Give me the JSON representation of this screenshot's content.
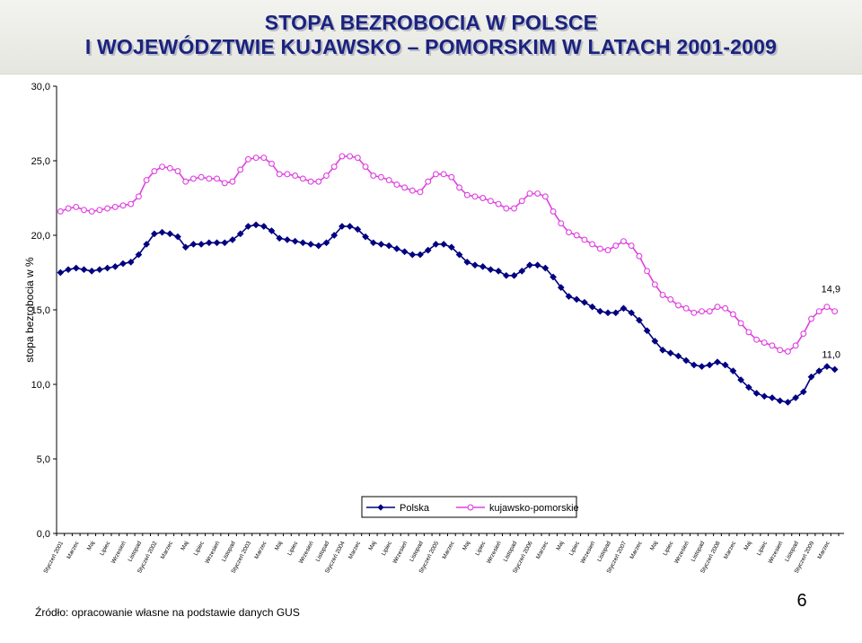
{
  "title": {
    "line1": "STOPA BEZROBOCIA W POLSCE",
    "line2": "I WOJEWÓDZTWIE KUJAWSKO – POMORSKIM W LATACH 2001-2009"
  },
  "source": "Źródło: opracowanie własne na podstawie danych GUS",
  "page_number": "6",
  "colors": {
    "polska": "#000080",
    "kujawsko": "#e040e0",
    "title": "#1a237e"
  },
  "chart_data": {
    "type": "line",
    "title": "STOPA BEZROBOCIA W POLSCE I WOJEWÓDZTWIE KUJAWSKO – POMORSKIM W LATACH 2001-2009",
    "xlabel": "",
    "ylabel": "stopa bezrobocia w %",
    "ylim": [
      0,
      30
    ],
    "yticks": [
      "0,0",
      "5,0",
      "10,0",
      "15,0",
      "20,0",
      "25,0",
      "30,0"
    ],
    "yticks_values": [
      0,
      5,
      10,
      15,
      20,
      25,
      30
    ],
    "grid": false,
    "legend_position": "bottom-right",
    "x_tick_labels": [
      "Styczeń 2001",
      "Marzec",
      "Maj",
      "Lipiec",
      "Wrzesień",
      "Listopad",
      "Styczeń 2002",
      "Marzec",
      "Maj",
      "Lipiec",
      "Wrzesień",
      "Listopad",
      "Styczeń 2003",
      "Marzec",
      "Maj",
      "Lipiec",
      "Wrzesień",
      "Listopad",
      "Styczeń 2004",
      "Marzec",
      "Maj",
      "Lipiec",
      "Wrzesień",
      "Listopad",
      "Styczeń 2005",
      "Marzec",
      "Maj",
      "Lipiec",
      "Wrzesień",
      "Listopad",
      "Styczeń 2006",
      "Marzec",
      "Maj",
      "Lipiec",
      "Wrzesień",
      "Listopad",
      "Styczeń 2007",
      "Marzec",
      "Maj",
      "Lipiec",
      "Wrzesień",
      "Listopad",
      "Styczeń 2008",
      "Marzec",
      "Maj",
      "Lipiec",
      "Wrzesień",
      "Listopad",
      "Styczeń 2009",
      "Marzec"
    ],
    "annotations": [
      {
        "text": "14,9",
        "series": 1
      },
      {
        "text": "11,0",
        "series": 0
      }
    ],
    "series": [
      {
        "name": "Polska",
        "marker": "diamond",
        "values": [
          17.5,
          17.7,
          17.8,
          17.7,
          17.6,
          17.7,
          17.8,
          17.9,
          18.1,
          18.2,
          18.7,
          19.4,
          20.1,
          20.2,
          20.1,
          19.9,
          19.2,
          19.4,
          19.4,
          19.5,
          19.5,
          19.5,
          19.7,
          20.1,
          20.6,
          20.7,
          20.6,
          20.3,
          19.8,
          19.7,
          19.6,
          19.5,
          19.4,
          19.3,
          19.5,
          20.0,
          20.6,
          20.6,
          20.4,
          19.9,
          19.5,
          19.4,
          19.3,
          19.1,
          18.9,
          18.7,
          18.7,
          19.0,
          19.4,
          19.4,
          19.2,
          18.7,
          18.2,
          18.0,
          17.9,
          17.7,
          17.6,
          17.3,
          17.3,
          17.6,
          18.0,
          18.0,
          17.8,
          17.2,
          16.5,
          15.9,
          15.7,
          15.5,
          15.2,
          14.9,
          14.8,
          14.8,
          15.1,
          14.8,
          14.3,
          13.6,
          12.9,
          12.3,
          12.1,
          11.9,
          11.6,
          11.3,
          11.2,
          11.3,
          11.5,
          11.3,
          10.9,
          10.3,
          9.8,
          9.4,
          9.2,
          9.1,
          8.9,
          8.8,
          9.1,
          9.5,
          10.5,
          10.9,
          11.2,
          11.0
        ]
      },
      {
        "name": "kujawsko-pomorskie",
        "marker": "circle",
        "values": [
          21.6,
          21.8,
          21.9,
          21.7,
          21.6,
          21.7,
          21.8,
          21.9,
          22.0,
          22.1,
          22.6,
          23.7,
          24.3,
          24.6,
          24.5,
          24.3,
          23.6,
          23.8,
          23.9,
          23.8,
          23.8,
          23.5,
          23.6,
          24.4,
          25.1,
          25.2,
          25.2,
          24.8,
          24.1,
          24.1,
          24.0,
          23.8,
          23.6,
          23.6,
          24.0,
          24.6,
          25.3,
          25.3,
          25.2,
          24.6,
          24.0,
          23.9,
          23.7,
          23.4,
          23.2,
          23.0,
          22.9,
          23.6,
          24.1,
          24.1,
          23.9,
          23.2,
          22.7,
          22.6,
          22.5,
          22.3,
          22.1,
          21.8,
          21.8,
          22.3,
          22.8,
          22.8,
          22.6,
          21.6,
          20.8,
          20.2,
          20.0,
          19.7,
          19.4,
          19.1,
          19.0,
          19.3,
          19.6,
          19.3,
          18.6,
          17.6,
          16.7,
          16.0,
          15.7,
          15.3,
          15.1,
          14.8,
          14.9,
          14.9,
          15.2,
          15.1,
          14.7,
          14.1,
          13.5,
          13.0,
          12.8,
          12.6,
          12.3,
          12.2,
          12.6,
          13.4,
          14.4,
          14.9,
          15.2,
          14.9
        ]
      }
    ]
  }
}
